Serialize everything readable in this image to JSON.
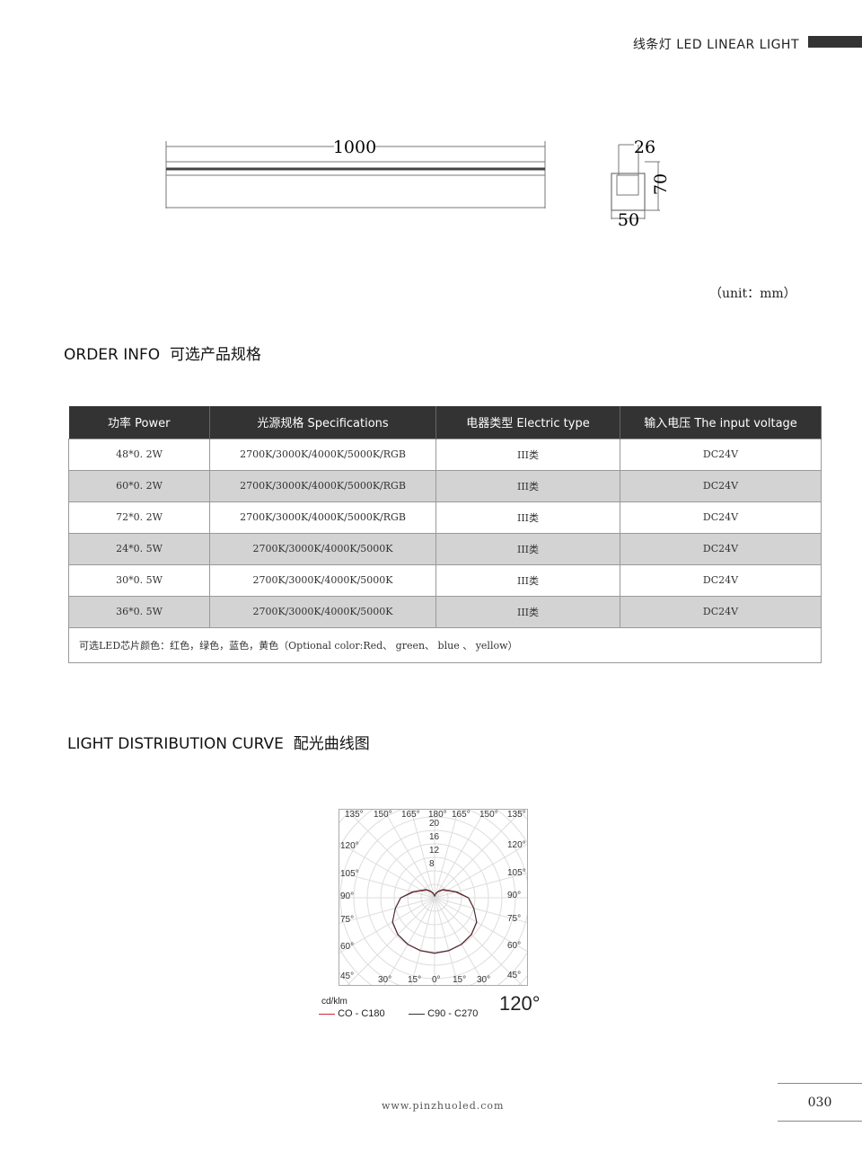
{
  "header": {
    "title": "线条灯 LED LINEAR LIGHT"
  },
  "drawing": {
    "length": "1000",
    "width_top": "26",
    "height": "70",
    "width_bottom": "50",
    "unit": "（unit：mm）"
  },
  "order": {
    "title": "ORDER INFO  可选产品规格",
    "columns": [
      "功率 Power",
      "光源规格 Specifications",
      "电器类型 Electric type",
      "输入电压 The input voltage"
    ],
    "rows": [
      [
        "48*0. 2W",
        "2700K/3000K/4000K/5000K/RGB",
        "III类",
        "DC24V"
      ],
      [
        "60*0. 2W",
        "2700K/3000K/4000K/5000K/RGB",
        "III类",
        "DC24V"
      ],
      [
        "72*0. 2W",
        "2700K/3000K/4000K/5000K/RGB",
        "III类",
        "DC24V"
      ],
      [
        "24*0. 5W",
        "2700K/3000K/4000K/5000K",
        "III类",
        "DC24V"
      ],
      [
        "30*0. 5W",
        "2700K/3000K/4000K/5000K",
        "III类",
        "DC24V"
      ],
      [
        "36*0. 5W",
        "2700K/3000K/4000K/5000K",
        "III类",
        "DC24V"
      ]
    ],
    "note": "可选LED芯片颜色：红色，绿色，蓝色，黄色（Optional color:Red、 green、 blue 、 yellow）"
  },
  "curve": {
    "title": "LIGHT DISTRIBUTION CURVE  配光曲线图",
    "unit": "cd/klm",
    "beam": "120°",
    "ring_labels": [
      "20",
      "16",
      "12",
      "8"
    ],
    "legend": [
      {
        "name": "CO - C180",
        "color": "#c8283c"
      },
      {
        "name": "C90 - C270",
        "color": "#333333"
      }
    ],
    "angle_labels": {
      "top": [
        "135°",
        "150°",
        "165°",
        "180°",
        "165°",
        "150°",
        "135°"
      ],
      "left": [
        "120°",
        "105°",
        "90°",
        "75°",
        "60°",
        "45°"
      ],
      "right": [
        "120°",
        "105°",
        "90°",
        "75°",
        "60°",
        "45°"
      ],
      "bottom": [
        "30°",
        "15°",
        "0°",
        "15°",
        "30°"
      ]
    },
    "chart_data": {
      "type": "polar",
      "unit": "cd/klm",
      "angles": [
        0,
        15,
        30,
        45,
        60,
        75,
        90,
        105,
        120,
        135,
        150,
        165,
        180
      ],
      "series": [
        {
          "name": "CO - C180",
          "values": [
            16.5,
            16.3,
            16,
            15.5,
            14.5,
            12,
            10,
            6.5,
            4.2,
            3.2,
            2,
            1.1,
            0.5
          ]
        },
        {
          "name": "C90 - C270",
          "values": [
            16.4,
            16.2,
            15.9,
            15.4,
            14.4,
            12.1,
            10.1,
            6.8,
            4.5,
            3.5,
            2.3,
            1.4,
            0.5
          ]
        }
      ]
    }
  },
  "footer": {
    "website": "www.pinzhuoled.com",
    "page": "030"
  }
}
